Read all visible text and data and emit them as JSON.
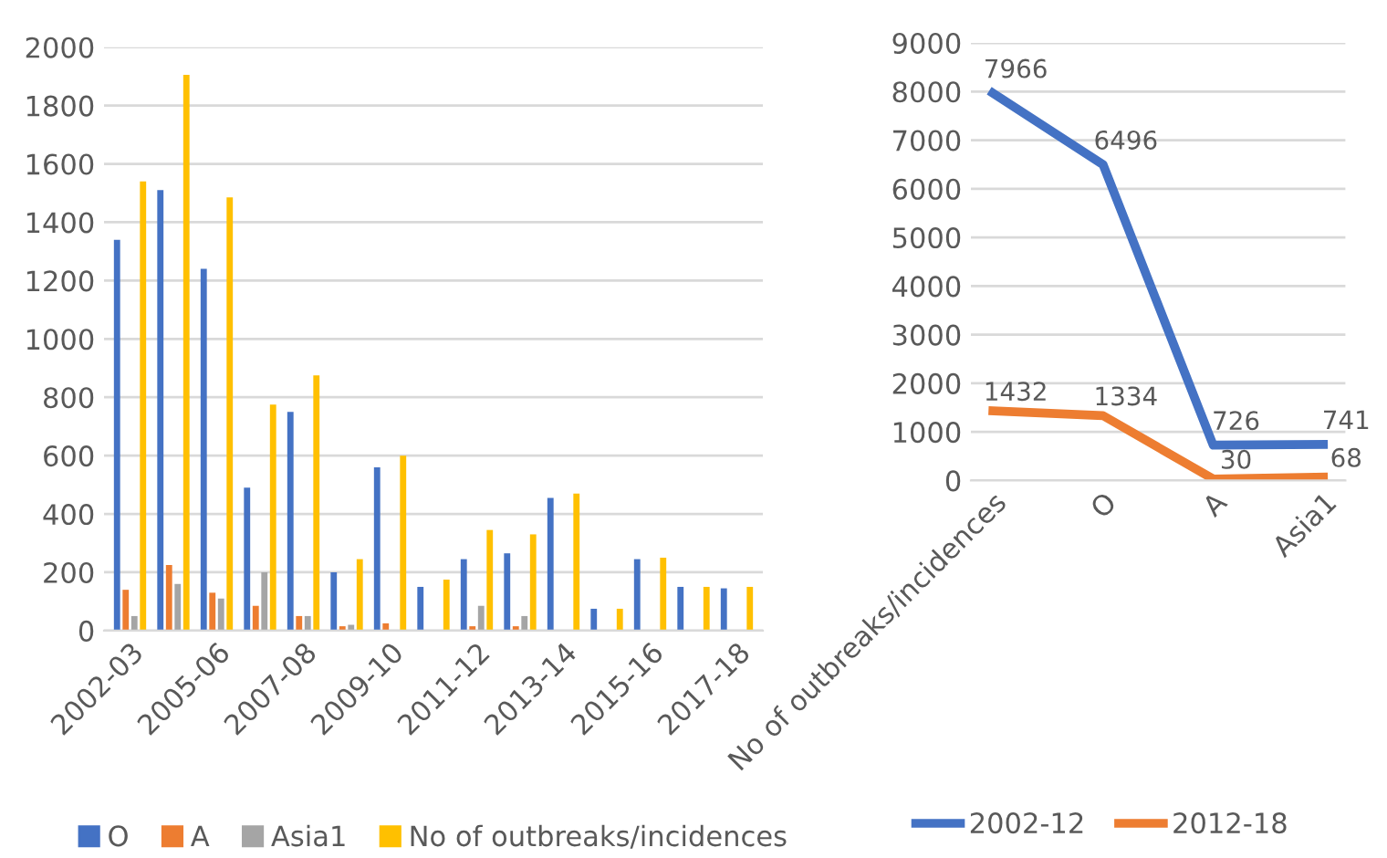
{
  "chart_data": [
    {
      "type": "bar",
      "categories": [
        "2002-03",
        null,
        "2005-06",
        null,
        "2007-08",
        null,
        "2009-10",
        null,
        "2011-12",
        null,
        "2013-14",
        null,
        "2015-16",
        null,
        "2017-18"
      ],
      "series": [
        {
          "name": "O",
          "color": "#4472c4",
          "values": [
            1340,
            1510,
            1240,
            490,
            750,
            200,
            560,
            150,
            245,
            265,
            455,
            75,
            245,
            150,
            145
          ]
        },
        {
          "name": "A",
          "color": "#ed7d31",
          "values": [
            140,
            225,
            130,
            85,
            50,
            15,
            25,
            0,
            15,
            15,
            0,
            0,
            0,
            0,
            0
          ]
        },
        {
          "name": "Asia1",
          "color": "#a5a5a5",
          "values": [
            50,
            160,
            110,
            200,
            50,
            20,
            null,
            null,
            85,
            50,
            0,
            0,
            0,
            0,
            0
          ]
        },
        {
          "name": "No of outbreaks/incidences",
          "color": "#ffc000",
          "values": [
            1540,
            1905,
            1485,
            775,
            875,
            245,
            600,
            175,
            345,
            330,
            470,
            75,
            250,
            150,
            150
          ]
        }
      ],
      "ylim": [
        0,
        2000
      ],
      "yticks": [
        0,
        200,
        400,
        600,
        800,
        1000,
        1200,
        1400,
        1600,
        1800,
        2000
      ],
      "grid": "y",
      "legend": "bottom"
    },
    {
      "type": "line",
      "categories": [
        "No of outbreaks/incidences",
        "O",
        "A",
        "Asia1"
      ],
      "series": [
        {
          "name": "2002-12",
          "color": "#4472c4",
          "values": [
            7966,
            6496,
            726,
            741
          ]
        },
        {
          "name": "2012-18",
          "color": "#ed7d31",
          "values": [
            1432,
            1334,
            30,
            68
          ]
        }
      ],
      "ylim": [
        0,
        9000
      ],
      "yticks": [
        0,
        1000,
        2000,
        3000,
        4000,
        5000,
        6000,
        7000,
        8000,
        9000
      ],
      "grid": "y",
      "legend": "bottom",
      "data_labels": true,
      "marker": "none",
      "line_style": "solid"
    }
  ]
}
